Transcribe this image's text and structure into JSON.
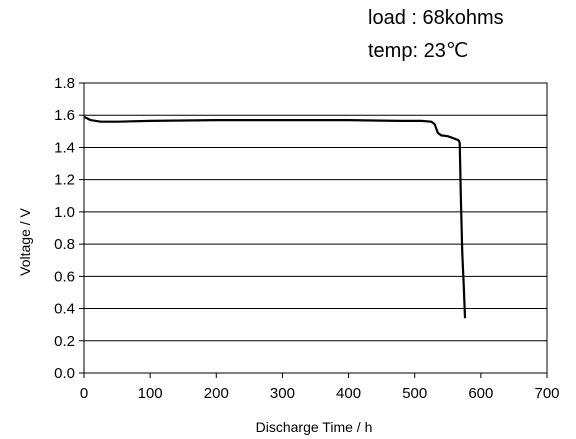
{
  "annotations": {
    "load": "load : 68kohms",
    "temp": "temp: 23℃"
  },
  "chart_data": {
    "type": "line",
    "title": "",
    "xlabel": "Discharge Time / h",
    "ylabel": "Voltage / V",
    "xlim": [
      0,
      700
    ],
    "ylim": [
      0.0,
      1.8
    ],
    "x_ticks": [
      0,
      100,
      200,
      300,
      400,
      500,
      600,
      700
    ],
    "y_ticks": [
      0.0,
      0.2,
      0.4,
      0.6,
      0.8,
      1.0,
      1.2,
      1.4,
      1.6,
      1.8
    ],
    "y_tick_labels": [
      "0.0",
      "0.2",
      "0.4",
      "0.6",
      "0.8",
      "1.0",
      "1.2",
      "1.4",
      "1.6",
      "1.8"
    ],
    "grid": "horizontal",
    "legend": "none",
    "line_color": "#000000",
    "series": [
      {
        "x": [
          0,
          10,
          25,
          50,
          100,
          200,
          300,
          400,
          480,
          510,
          525,
          530,
          535,
          540,
          550,
          560,
          566,
          568,
          570,
          572,
          574,
          576
        ],
        "y": [
          1.59,
          1.57,
          1.56,
          1.56,
          1.565,
          1.57,
          1.57,
          1.57,
          1.565,
          1.565,
          1.56,
          1.545,
          1.49,
          1.475,
          1.47,
          1.455,
          1.445,
          1.43,
          1.05,
          0.74,
          0.55,
          0.34
        ]
      }
    ]
  }
}
